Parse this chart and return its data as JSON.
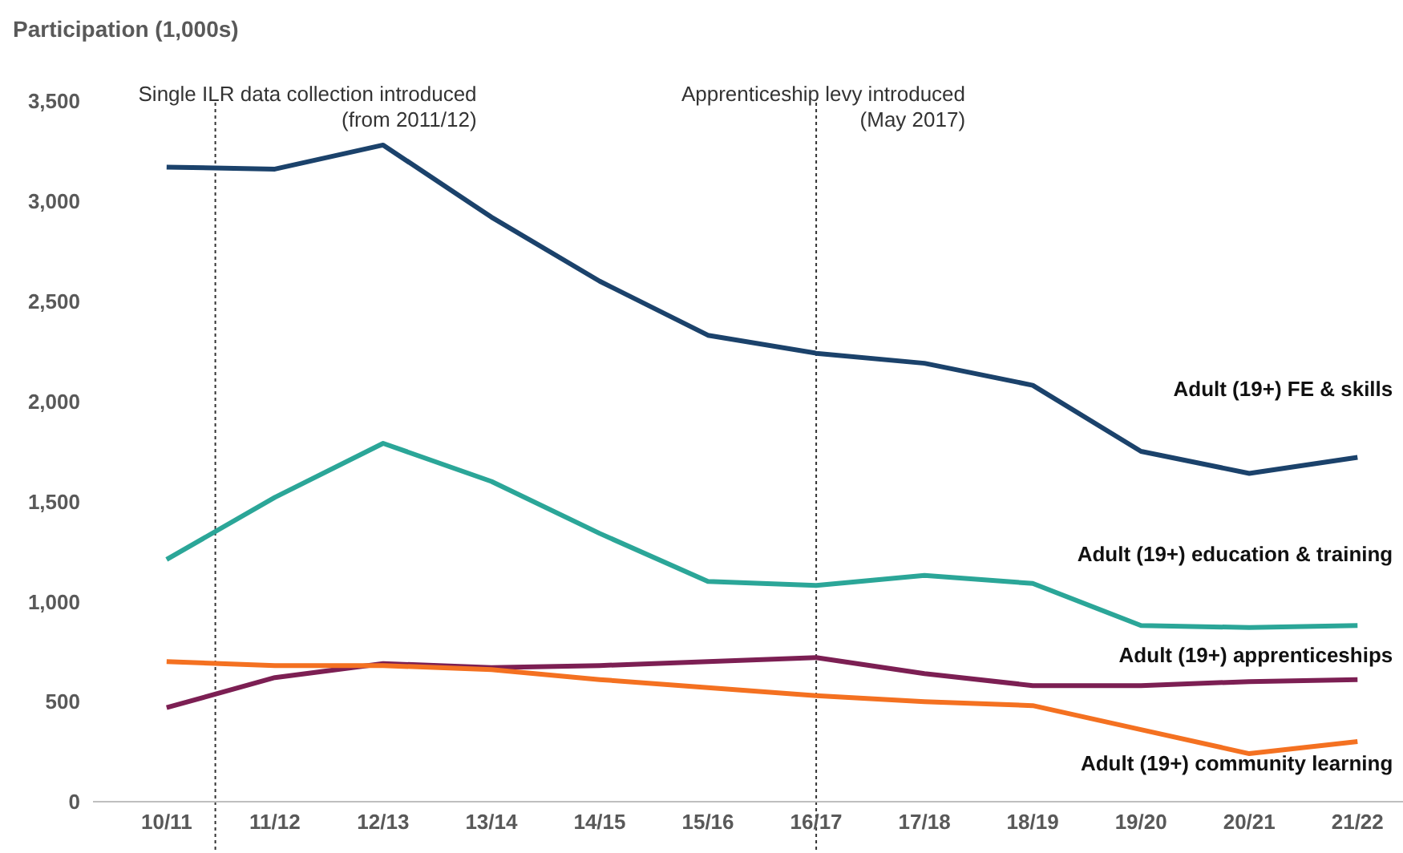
{
  "chart_data": {
    "type": "line",
    "ylabel": "Participation (1,000s)",
    "categories": [
      "10/11",
      "11/12",
      "12/13",
      "13/14",
      "14/15",
      "15/16",
      "16/17",
      "17/18",
      "18/19",
      "19/20",
      "20/21",
      "21/22"
    ],
    "series": [
      {
        "name": "Adult (19+) FE & skills",
        "color": "#1b426b",
        "values": [
          3170,
          3160,
          3280,
          2920,
          2600,
          2330,
          2240,
          2190,
          2080,
          1750,
          1640,
          1720
        ]
      },
      {
        "name": "Adult (19+) education & training",
        "color": "#2ba698",
        "values": [
          1210,
          1520,
          1790,
          1600,
          1340,
          1100,
          1080,
          1130,
          1090,
          880,
          870,
          880
        ]
      },
      {
        "name": "Adult (19+) apprenticeships",
        "color": "#7c1f53",
        "values": [
          470,
          620,
          690,
          670,
          680,
          700,
          720,
          640,
          580,
          580,
          600,
          610
        ]
      },
      {
        "name": "Adult (19+) community learning",
        "color": "#f47121",
        "values": [
          700,
          680,
          680,
          660,
          610,
          570,
          530,
          500,
          480,
          360,
          240,
          300
        ]
      }
    ],
    "ylim": [
      0,
      3500
    ],
    "yticks": [
      0,
      500,
      {
        "value": 1000,
        "label": "1,000"
      },
      {
        "value": 1500,
        "label": "1,500"
      },
      {
        "value": 2000,
        "label": "2,000"
      },
      {
        "value": 2500,
        "label": "2,500"
      },
      {
        "value": 3000,
        "label": "3,000"
      },
      {
        "value": 3500,
        "label": "3,500"
      }
    ],
    "grid": false,
    "legend": false,
    "marker": "none",
    "line_style": "solid",
    "annotations": [
      "Single ILR data collection introduced\n(from 2011/12)"
    ],
    "ref_lines": [
      {
        "axis": "x",
        "value": "16/17",
        "label": "Apprenticeship levy introduced\n(May 2017)",
        "line_style": "dotted",
        "color": "#333333"
      }
    ]
  }
}
